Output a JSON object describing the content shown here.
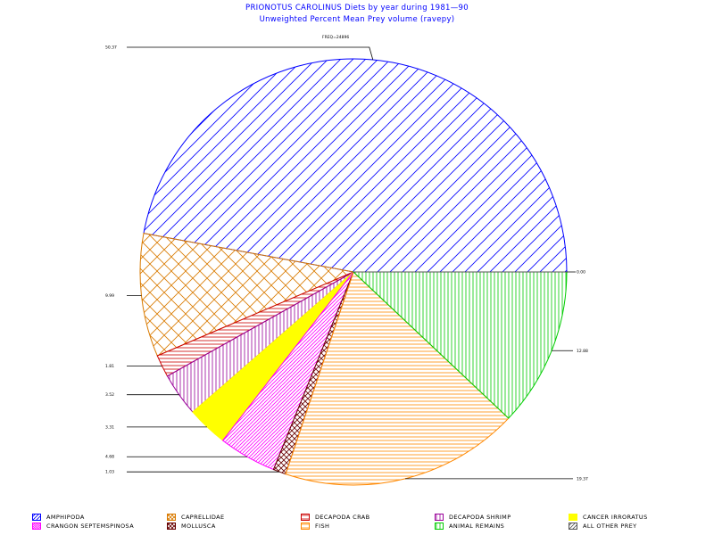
{
  "header": {
    "title": "PRIONOTUS CAROLINUS Diets by year during 1981—90",
    "subtitle": "Unweighted Percent Mean Prey volume (ravepy)"
  },
  "chart_data": {
    "type": "pie",
    "title": "PRIONOTUS CAROLINUS Diets by year during 1981—90",
    "subtitle": "Unweighted Percent Mean Prey volume (ravepy)",
    "frequency_label": "FREQ=24896",
    "slices": [
      {
        "name": "AMPHIPODA",
        "value": 50.37,
        "label": "50.37",
        "color": "#0000ff",
        "pattern": "diag"
      },
      {
        "name": "CAPRELLIDAE",
        "value": 9.99,
        "label": "9.99",
        "color": "#d97a00",
        "pattern": "cross"
      },
      {
        "name": "DECAPODA CRAB",
        "value": 1.81,
        "label": "1.81",
        "color": "#cc0000",
        "pattern": "hstripe"
      },
      {
        "name": "DECAPODA SHRIMP",
        "value": 3.52,
        "label": "3.52",
        "color": "#990099",
        "pattern": "vstripe"
      },
      {
        "name": "CANCER IRRORATUS",
        "value": 3.31,
        "label": "3.31",
        "color": "#ffff00",
        "pattern": "solid"
      },
      {
        "name": "CRANGON SEPTEMSPINOSA",
        "value": 4.68,
        "label": "4.68",
        "color": "#ff00ff",
        "pattern": "diag2"
      },
      {
        "name": "MOLLUSCA",
        "value": 1.03,
        "label": "1.03",
        "color": "#660000",
        "pattern": "cross2"
      },
      {
        "name": "FISH",
        "value": 19.37,
        "label": "19.37",
        "color": "#ff8800",
        "pattern": "hstripe"
      },
      {
        "name": "ANIMAL REMAINS",
        "value": 12.88,
        "label": "12.88",
        "color": "#00cc00",
        "pattern": "vstripe"
      },
      {
        "name": "ALL OTHER PREY",
        "value": 0.0,
        "label": "0.00",
        "color": "#555555",
        "pattern": "diag"
      }
    ]
  },
  "legend": [
    {
      "label": "AMPHIPODA",
      "color": "#0000ff",
      "pattern": "diag"
    },
    {
      "label": "CAPRELLIDAE",
      "color": "#d97a00",
      "pattern": "cross"
    },
    {
      "label": "DECAPODA CRAB",
      "color": "#cc0000",
      "pattern": "hstripe"
    },
    {
      "label": "DECAPODA SHRIMP",
      "color": "#990099",
      "pattern": "vstripe"
    },
    {
      "label": "CANCER IRRORATUS",
      "color": "#ffff00",
      "pattern": "solid"
    },
    {
      "label": "CRANGON SEPTEMSPINOSA",
      "color": "#ff00ff",
      "pattern": "diag2"
    },
    {
      "label": "MOLLUSCA",
      "color": "#660000",
      "pattern": "cross2"
    },
    {
      "label": "FISH",
      "color": "#ff8800",
      "pattern": "hstripe"
    },
    {
      "label": "ANIMAL REMAINS",
      "color": "#00cc00",
      "pattern": "vstripe"
    },
    {
      "label": "ALL OTHER PREY",
      "color": "#555555",
      "pattern": "diag"
    }
  ]
}
